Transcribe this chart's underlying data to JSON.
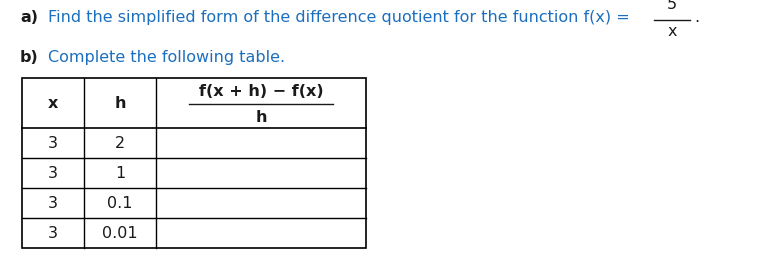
{
  "blue": "#1c6fbe",
  "black": "#1a1a1a",
  "font_size": 11.5,
  "table_x_vals": [
    "3",
    "3",
    "3",
    "3"
  ],
  "table_h_vals": [
    "2",
    "1",
    "0.1",
    "0.01"
  ]
}
